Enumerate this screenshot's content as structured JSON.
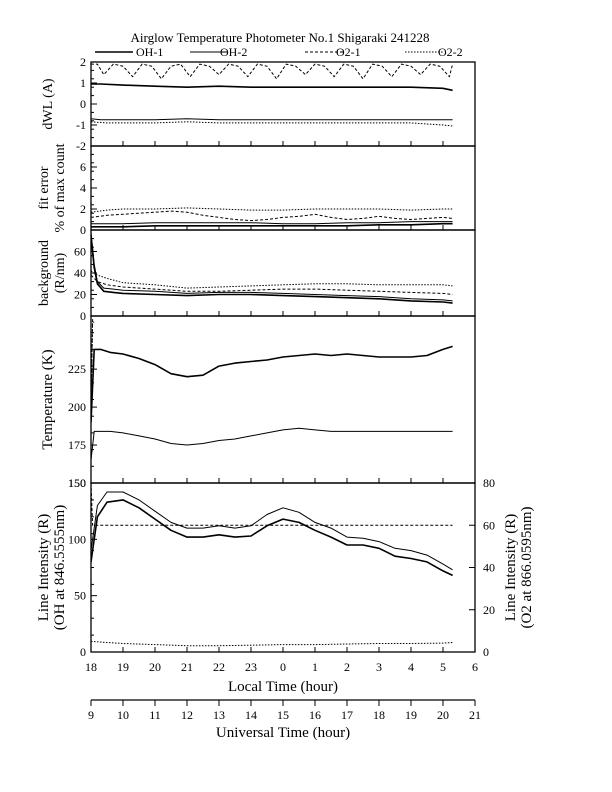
{
  "title": "Airglow Temperature Photometer No.1 Shigaraki 241228",
  "legend": {
    "items": [
      {
        "name": "OH-1",
        "color": "#000000",
        "dash": "",
        "width": 1.6
      },
      {
        "name": "OH-2",
        "color": "#000000",
        "dash": "",
        "width": 1.0
      },
      {
        "name": "O2-1",
        "color": "#000000",
        "dash": "3,2",
        "width": 1.0
      },
      {
        "name": "O2-2",
        "color": "#000000",
        "dash": "1.5,1.5",
        "width": 1.0
      }
    ]
  },
  "x_axes": {
    "local": {
      "label": "Local Time (hour)",
      "ticks": [
        "18",
        "19",
        "20",
        "21",
        "22",
        "23",
        "0",
        "1",
        "2",
        "3",
        "4",
        "5",
        "6"
      ]
    },
    "universal": {
      "label": "Universal Time (hour)",
      "ticks": [
        "9",
        "10",
        "11",
        "12",
        "13",
        "14",
        "15",
        "16",
        "17",
        "18",
        "19",
        "20",
        "21"
      ]
    }
  },
  "chart_data": [
    {
      "type": "line",
      "id": "dwl",
      "ylabel": "dWL (A)",
      "ylim": [
        -2,
        2
      ],
      "yticks": [
        "-2",
        "-1",
        "0",
        "1",
        "2"
      ],
      "ytick_values": [
        -2,
        -1,
        0,
        1,
        2
      ],
      "x_range_ut": [
        9,
        21
      ],
      "series": [
        {
          "name": "OH-1",
          "x": [
            9.0,
            9.3,
            10.0,
            11.0,
            12.0,
            13.0,
            14.0,
            15.0,
            16.0,
            17.0,
            18.0,
            19.0,
            20.0,
            20.3
          ],
          "values": [
            0.95,
            0.95,
            0.9,
            0.85,
            0.8,
            0.85,
            0.8,
            0.8,
            0.8,
            0.8,
            0.8,
            0.8,
            0.75,
            0.65
          ]
        },
        {
          "name": "OH-2",
          "x": [
            9.0,
            9.3,
            10.0,
            11.0,
            12.0,
            13.0,
            14.0,
            15.0,
            16.0,
            17.0,
            18.0,
            19.0,
            20.0,
            20.3
          ],
          "values": [
            -0.7,
            -0.75,
            -0.75,
            -0.75,
            -0.7,
            -0.75,
            -0.75,
            -0.75,
            -0.75,
            -0.75,
            -0.75,
            -0.75,
            -0.75,
            -0.75
          ]
        },
        {
          "name": "O2-1",
          "x": [
            9.0,
            9.2,
            9.4,
            9.7,
            10.0,
            10.3,
            10.6,
            10.9,
            11.2,
            11.5,
            11.8,
            12.1,
            12.4,
            12.7,
            13.0,
            13.3,
            13.6,
            13.9,
            14.2,
            14.5,
            14.8,
            15.1,
            15.4,
            15.7,
            16.0,
            16.3,
            16.6,
            16.9,
            17.2,
            17.5,
            17.8,
            18.1,
            18.4,
            18.7,
            19.0,
            19.3,
            19.6,
            19.9,
            20.2,
            20.3
          ],
          "values": [
            1.9,
            1.9,
            1.4,
            1.9,
            1.8,
            1.3,
            1.9,
            1.8,
            1.2,
            1.8,
            1.9,
            1.3,
            1.9,
            1.8,
            1.4,
            1.9,
            1.8,
            1.3,
            1.9,
            1.8,
            1.2,
            1.9,
            1.8,
            1.4,
            1.9,
            1.8,
            1.3,
            1.9,
            1.8,
            1.2,
            1.9,
            1.8,
            1.3,
            1.9,
            1.8,
            1.4,
            1.9,
            1.8,
            1.3,
            1.9
          ]
        },
        {
          "name": "O2-2",
          "x": [
            9.0,
            9.5,
            10.0,
            11.0,
            12.0,
            13.0,
            14.0,
            15.0,
            16.0,
            17.0,
            18.0,
            19.0,
            19.5,
            20.0,
            20.3
          ],
          "values": [
            -0.85,
            -0.9,
            -0.9,
            -0.9,
            -0.85,
            -0.9,
            -0.9,
            -0.9,
            -0.9,
            -0.9,
            -0.9,
            -0.9,
            -0.95,
            -1.0,
            -1.05
          ]
        }
      ]
    },
    {
      "type": "line",
      "id": "fit",
      "ylabel": "fit error",
      "ylabel2": "% of max count",
      "ylim": [
        0,
        8
      ],
      "yticks": [
        "0",
        "2",
        "4",
        "6"
      ],
      "ytick_values": [
        0,
        2,
        4,
        6
      ],
      "x_range_ut": [
        9,
        21
      ],
      "series": [
        {
          "name": "OH-1",
          "x": [
            9.0,
            10.0,
            11.0,
            12.0,
            13.0,
            14.0,
            15.0,
            16.0,
            17.0,
            18.0,
            19.0,
            20.0,
            20.3
          ],
          "values": [
            0.3,
            0.3,
            0.4,
            0.4,
            0.4,
            0.4,
            0.4,
            0.4,
            0.4,
            0.5,
            0.5,
            0.6,
            0.6
          ]
        },
        {
          "name": "OH-2",
          "x": [
            9.0,
            10.0,
            11.0,
            12.0,
            13.0,
            14.0,
            15.0,
            16.0,
            17.0,
            18.0,
            19.0,
            20.0,
            20.3
          ],
          "values": [
            0.6,
            0.6,
            0.7,
            0.7,
            0.7,
            0.7,
            0.6,
            0.6,
            0.7,
            0.7,
            0.8,
            0.8,
            0.8
          ]
        },
        {
          "name": "O2-1",
          "x": [
            9.0,
            9.5,
            10.0,
            10.5,
            11.0,
            11.5,
            12.0,
            12.5,
            13.0,
            13.5,
            14.0,
            14.5,
            15.0,
            15.5,
            16.0,
            16.5,
            17.0,
            17.5,
            18.0,
            18.5,
            19.0,
            19.5,
            20.0,
            20.3
          ],
          "values": [
            1.2,
            1.4,
            1.5,
            1.6,
            1.7,
            1.8,
            1.7,
            1.4,
            1.2,
            1.0,
            0.9,
            1.0,
            1.2,
            1.3,
            1.5,
            1.2,
            1.0,
            1.1,
            1.3,
            1.1,
            1.0,
            1.1,
            1.2,
            1.1
          ]
        },
        {
          "name": "O2-2",
          "x": [
            9.0,
            9.5,
            10.0,
            11.0,
            12.0,
            13.0,
            14.0,
            15.0,
            16.0,
            17.0,
            18.0,
            19.0,
            20.0,
            20.3
          ],
          "values": [
            1.7,
            1.9,
            2.0,
            2.0,
            2.1,
            2.0,
            1.9,
            1.9,
            2.0,
            2.0,
            2.0,
            1.9,
            2.0,
            2.0
          ]
        }
      ]
    },
    {
      "type": "line",
      "id": "bkg",
      "ylabel": "background",
      "ylabel2": "(R/nm)",
      "ylim": [
        0,
        80
      ],
      "yticks": [
        "0",
        "20",
        "40",
        "60"
      ],
      "ytick_values": [
        0,
        20,
        40,
        60
      ],
      "x_range_ut": [
        9,
        21
      ],
      "series": [
        {
          "name": "OH-1",
          "x": [
            9.0,
            9.1,
            9.2,
            9.4,
            9.7,
            10.0,
            11.0,
            12.0,
            13.0,
            14.0,
            15.0,
            16.0,
            17.0,
            18.0,
            19.0,
            20.0,
            20.3
          ],
          "values": [
            75,
            45,
            30,
            23,
            22,
            21,
            20,
            19,
            20,
            20,
            19,
            18,
            17,
            16,
            14,
            13,
            12
          ]
        },
        {
          "name": "OH-2",
          "x": [
            9.0,
            9.1,
            9.2,
            9.4,
            9.7,
            10.0,
            11.0,
            12.0,
            13.0,
            14.0,
            15.0,
            16.0,
            17.0,
            18.0,
            19.0,
            20.0,
            20.3
          ],
          "values": [
            78,
            48,
            32,
            26,
            25,
            24,
            23,
            21,
            22,
            22,
            21,
            20,
            19,
            18,
            16,
            15,
            14
          ]
        },
        {
          "name": "O2-1",
          "x": [
            9.0,
            9.2,
            9.5,
            10.0,
            11.0,
            12.0,
            13.0,
            14.0,
            15.0,
            16.0,
            17.0,
            18.0,
            19.0,
            20.0,
            20.3
          ],
          "values": [
            38,
            32,
            29,
            27,
            25,
            23,
            23,
            24,
            25,
            25,
            24,
            23,
            22,
            21,
            20
          ]
        },
        {
          "name": "O2-2",
          "x": [
            9.0,
            9.2,
            9.5,
            10.0,
            11.0,
            12.0,
            13.0,
            14.0,
            15.0,
            16.0,
            17.0,
            18.0,
            19.0,
            20.0,
            20.3
          ],
          "values": [
            42,
            38,
            35,
            31,
            29,
            26,
            27,
            28,
            29,
            30,
            30,
            29,
            29,
            29,
            28
          ]
        }
      ]
    },
    {
      "type": "line",
      "id": "temp",
      "ylabel": "Temperature (K)",
      "ylim": [
        150,
        260
      ],
      "yticks": [
        "150",
        "175",
        "200",
        "225"
      ],
      "ytick_values": [
        150,
        175,
        200,
        225
      ],
      "x_range_ut": [
        9,
        21
      ],
      "series": [
        {
          "name": "OH-1",
          "x": [
            9.0,
            9.1,
            9.3,
            9.6,
            10.0,
            10.5,
            11.0,
            11.5,
            12.0,
            12.5,
            13.0,
            13.5,
            14.0,
            14.5,
            15.0,
            15.5,
            16.0,
            16.5,
            17.0,
            17.5,
            18.0,
            18.5,
            19.0,
            19.5,
            20.0,
            20.3
          ],
          "values": [
            190,
            238,
            238,
            236,
            235,
            232,
            228,
            222,
            220,
            221,
            227,
            229,
            230,
            231,
            233,
            234,
            235,
            234,
            235,
            234,
            233,
            233,
            233,
            234,
            238,
            240
          ]
        },
        {
          "name": "OH-2",
          "x": [
            9.0,
            9.1,
            9.3,
            9.6,
            10.0,
            10.5,
            11.0,
            11.5,
            12.0,
            12.5,
            13.0,
            13.5,
            14.0,
            14.5,
            15.0,
            15.5,
            16.0,
            16.5,
            17.0,
            17.5,
            18.0,
            18.5,
            19.0,
            19.5,
            20.0,
            20.3
          ],
          "values": [
            165,
            184,
            184,
            184,
            183,
            181,
            179,
            176,
            175,
            176,
            178,
            179,
            181,
            183,
            185,
            186,
            185,
            184,
            184,
            184,
            184,
            184,
            184,
            184,
            184,
            184
          ]
        },
        {
          "name": "O2-1",
          "x": [
            9.0,
            9.05,
            9.1
          ],
          "values": [
            200,
            258,
            258
          ]
        },
        {
          "name": "O2-2",
          "x": [
            9.0,
            9.05,
            9.1
          ],
          "values": [
            195,
            256,
            256
          ]
        }
      ]
    },
    {
      "type": "line",
      "id": "int",
      "ylabel": "Line Intensity (R)",
      "ylabel2": "(OH at 846.5555nm)",
      "ylabel_right": "Line Intensity (R)",
      "ylabel_right2": "(O2 at 866.0595nm)",
      "ylim": [
        0,
        150
      ],
      "ylim_right": [
        0,
        80
      ],
      "yticks": [
        "0",
        "50",
        "100",
        "150"
      ],
      "ytick_values": [
        0,
        50,
        100,
        150
      ],
      "yticks_right": [
        "0",
        "20",
        "40",
        "60",
        "80"
      ],
      "ytick_values_right": [
        0,
        20,
        40,
        60,
        80
      ],
      "x_range_ut": [
        9,
        21
      ],
      "series": [
        {
          "name": "OH-1",
          "axis": "left",
          "x": [
            9.0,
            9.2,
            9.5,
            10.0,
            10.5,
            11.0,
            11.5,
            12.0,
            12.5,
            13.0,
            13.5,
            14.0,
            14.5,
            15.0,
            15.5,
            16.0,
            16.5,
            17.0,
            17.5,
            18.0,
            18.5,
            19.0,
            19.5,
            20.0,
            20.3
          ],
          "values": [
            80,
            120,
            133,
            135,
            128,
            118,
            108,
            102,
            102,
            104,
            102,
            103,
            112,
            118,
            115,
            108,
            102,
            95,
            95,
            92,
            85,
            83,
            80,
            72,
            68
          ]
        },
        {
          "name": "OH-2",
          "axis": "left",
          "x": [
            9.0,
            9.2,
            9.5,
            10.0,
            10.5,
            11.0,
            11.5,
            12.0,
            12.5,
            13.0,
            13.5,
            14.0,
            14.5,
            15.0,
            15.5,
            16.0,
            16.5,
            17.0,
            17.5,
            18.0,
            18.5,
            19.0,
            19.5,
            20.0,
            20.3
          ],
          "values": [
            90,
            130,
            142,
            142,
            135,
            125,
            115,
            110,
            110,
            112,
            110,
            112,
            122,
            128,
            124,
            115,
            110,
            102,
            101,
            98,
            92,
            90,
            86,
            78,
            73
          ]
        },
        {
          "name": "O2-1",
          "axis": "right",
          "x": [
            9.0,
            9.05,
            9.1,
            9.5,
            10.0,
            11.0,
            12.0,
            13.0,
            14.0,
            15.0,
            16.0,
            17.0,
            18.0,
            19.0,
            20.0,
            20.3
          ],
          "values": [
            80,
            60,
            60,
            60,
            60,
            60,
            60,
            60,
            60,
            60,
            60,
            60,
            60,
            60,
            60,
            60
          ]
        },
        {
          "name": "O2-2",
          "axis": "right",
          "x": [
            9.0,
            9.5,
            10.0,
            11.0,
            12.0,
            13.0,
            14.0,
            15.0,
            16.0,
            17.0,
            18.0,
            19.0,
            20.0,
            20.3
          ],
          "values": [
            5,
            4.5,
            4,
            3.5,
            3,
            3,
            3.2,
            3.5,
            3.5,
            3.8,
            4,
            4,
            4.2,
            4.5
          ]
        }
      ]
    }
  ]
}
